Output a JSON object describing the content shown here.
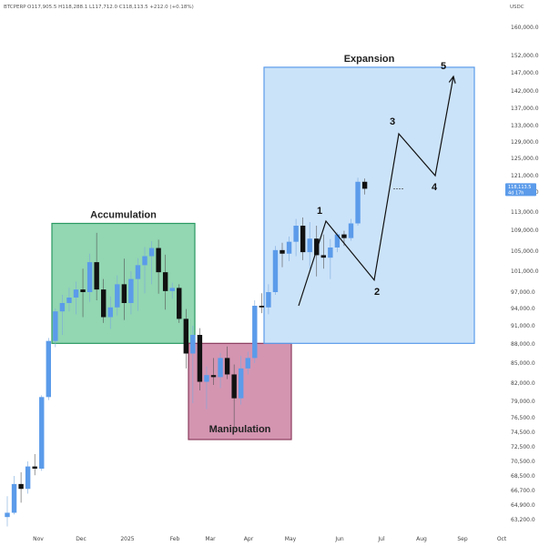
{
  "header": {
    "symbol": "BTCPERP",
    "ohlc_text": "O117,905.5  H118,288.1  L117,712.0  C118,113.5  +212.0 (+0.18%)",
    "currency": "USDC"
  },
  "colors": {
    "bull": "#5b9bea",
    "bear": "#111111",
    "accumulation_fill": "#7fcfa5",
    "accumulation_stroke": "#2b9a63",
    "manipulation_fill": "#cf89a8",
    "manipulation_stroke": "#8a3b5c",
    "expansion_fill": "#b9d9f7",
    "expansion_stroke": "#5b9bea"
  },
  "last_price": {
    "value": "118,113.5",
    "timer": "4d 17h"
  },
  "chart_data": {
    "type": "candlestick",
    "xlabels": [
      "Nov",
      "Dec",
      "2025",
      "Feb",
      "Mar",
      "Apr",
      "May",
      "Jun",
      "Jul",
      "Aug",
      "Sep",
      "Oct"
    ],
    "yticks": [
      63200,
      64900,
      66700,
      68500,
      70500,
      72500,
      74500,
      76500,
      79000,
      82000,
      85000,
      88000,
      91000,
      94000,
      97000,
      101000,
      105000,
      109000,
      113000,
      117000,
      121000,
      125000,
      129000,
      133000,
      137000,
      142000,
      147000,
      152000,
      160000
    ],
    "ytick_labels": [
      "63,200.0",
      "64,900.0",
      "66,700.0",
      "68,500.0",
      "70,500.0",
      "72,500.0",
      "74,500.0",
      "76,500.0",
      "79,000.0",
      "82,000.0",
      "85,000.0",
      "88,000.0",
      "91,000.0",
      "94,000.0",
      "97,000.0",
      "101,000.0",
      "105,000.0",
      "109,000.0",
      "113,000.0",
      "117,000.0",
      "121,000.0",
      "125,000.0",
      "129,000.0",
      "133,000.0",
      "137,000.0",
      "142,000.0",
      "147,000.0",
      "152,000.0",
      "160,000.0"
    ],
    "candles": [
      {
        "o": 63500,
        "h": 66000,
        "l": 62400,
        "c": 64000
      },
      {
        "o": 64000,
        "h": 68500,
        "l": 63800,
        "c": 67500
      },
      {
        "o": 67500,
        "h": 69000,
        "l": 65200,
        "c": 66900
      },
      {
        "o": 66900,
        "h": 70500,
        "l": 66300,
        "c": 69800
      },
      {
        "o": 69800,
        "h": 71500,
        "l": 68600,
        "c": 69500
      },
      {
        "o": 69500,
        "h": 80000,
        "l": 69200,
        "c": 79700
      },
      {
        "o": 79700,
        "h": 89000,
        "l": 79200,
        "c": 88500
      },
      {
        "o": 88500,
        "h": 94000,
        "l": 87500,
        "c": 93500
      },
      {
        "o": 93500,
        "h": 96500,
        "l": 89500,
        "c": 95000
      },
      {
        "o": 95000,
        "h": 97800,
        "l": 93500,
        "c": 96000
      },
      {
        "o": 96000,
        "h": 99000,
        "l": 93000,
        "c": 97500
      },
      {
        "o": 97500,
        "h": 101500,
        "l": 92500,
        "c": 97000
      },
      {
        "o": 97000,
        "h": 104500,
        "l": 95200,
        "c": 102800
      },
      {
        "o": 102800,
        "h": 108500,
        "l": 95500,
        "c": 97500
      },
      {
        "o": 97500,
        "h": 99500,
        "l": 91500,
        "c": 92500
      },
      {
        "o": 92500,
        "h": 96200,
        "l": 90500,
        "c": 94200
      },
      {
        "o": 94200,
        "h": 100200,
        "l": 92800,
        "c": 98500
      },
      {
        "o": 98500,
        "h": 103500,
        "l": 92000,
        "c": 95000
      },
      {
        "o": 95000,
        "h": 101000,
        "l": 93000,
        "c": 99500
      },
      {
        "o": 99500,
        "h": 103600,
        "l": 93600,
        "c": 102200
      },
      {
        "o": 102200,
        "h": 105800,
        "l": 96800,
        "c": 104000
      },
      {
        "o": 104000,
        "h": 106900,
        "l": 98500,
        "c": 105600
      },
      {
        "o": 105600,
        "h": 107200,
        "l": 96700,
        "c": 100800
      },
      {
        "o": 100800,
        "h": 104300,
        "l": 93800,
        "c": 97200
      },
      {
        "o": 97200,
        "h": 98800,
        "l": 95800,
        "c": 97800
      },
      {
        "o": 97800,
        "h": 98500,
        "l": 91500,
        "c": 92200
      },
      {
        "o": 92200,
        "h": 93900,
        "l": 84200,
        "c": 86500
      },
      {
        "o": 86500,
        "h": 91000,
        "l": 78700,
        "c": 89500
      },
      {
        "o": 89500,
        "h": 90600,
        "l": 80800,
        "c": 82200
      },
      {
        "o": 82200,
        "h": 84500,
        "l": 77800,
        "c": 83200
      },
      {
        "o": 83200,
        "h": 85800,
        "l": 81700,
        "c": 82900
      },
      {
        "o": 82900,
        "h": 86600,
        "l": 81200,
        "c": 85800
      },
      {
        "o": 85800,
        "h": 87600,
        "l": 82600,
        "c": 83300
      },
      {
        "o": 83300,
        "h": 84800,
        "l": 74600,
        "c": 79500
      },
      {
        "o": 79500,
        "h": 86100,
        "l": 78500,
        "c": 84200
      },
      {
        "o": 84200,
        "h": 86800,
        "l": 83300,
        "c": 85800
      },
      {
        "o": 85800,
        "h": 95500,
        "l": 85000,
        "c": 94500
      },
      {
        "o": 94500,
        "h": 96800,
        "l": 93200,
        "c": 94200
      },
      {
        "o": 94200,
        "h": 98500,
        "l": 93000,
        "c": 97000
      },
      {
        "o": 97000,
        "h": 106000,
        "l": 96500,
        "c": 105200
      },
      {
        "o": 105200,
        "h": 106600,
        "l": 101800,
        "c": 104500
      },
      {
        "o": 104500,
        "h": 107800,
        "l": 103000,
        "c": 106800
      },
      {
        "o": 106800,
        "h": 111500,
        "l": 104000,
        "c": 110000
      },
      {
        "o": 110000,
        "h": 111800,
        "l": 103200,
        "c": 104800
      },
      {
        "o": 104800,
        "h": 110800,
        "l": 101500,
        "c": 107400
      },
      {
        "o": 107400,
        "h": 110000,
        "l": 100000,
        "c": 104200
      },
      {
        "o": 104200,
        "h": 108200,
        "l": 101500,
        "c": 103700
      },
      {
        "o": 103700,
        "h": 107300,
        "l": 99500,
        "c": 105700
      },
      {
        "o": 105700,
        "h": 108600,
        "l": 104800,
        "c": 108200
      },
      {
        "o": 108200,
        "h": 108900,
        "l": 106000,
        "c": 107500
      },
      {
        "o": 107500,
        "h": 111500,
        "l": 107000,
        "c": 110500
      },
      {
        "o": 110500,
        "h": 120500,
        "l": 110000,
        "c": 119500
      },
      {
        "o": 119500,
        "h": 120300,
        "l": 116500,
        "c": 117800
      }
    ],
    "zones": [
      {
        "name": "Accumulation",
        "x0": 57,
        "x1": 214,
        "y_high": 110500,
        "y_low": 88100
      },
      {
        "name": "Manipulation",
        "x0": 207,
        "x1": 320,
        "y_high": 88100,
        "y_low": 73500
      },
      {
        "name": "Expansion",
        "x0": 290,
        "x1": 521,
        "y_high": 148600,
        "y_low": 88100
      }
    ],
    "waves": [
      {
        "label": "1",
        "x": 358,
        "y": 111000
      },
      {
        "label": "2",
        "x": 411,
        "y": 99300
      },
      {
        "label": "3",
        "x": 438,
        "y": 131000
      },
      {
        "label": "4",
        "x": 478,
        "y": 121000
      },
      {
        "label": "5",
        "x": 498,
        "y": 146000
      }
    ],
    "wave_path_start": {
      "x": 328,
      "y": 94500
    }
  }
}
